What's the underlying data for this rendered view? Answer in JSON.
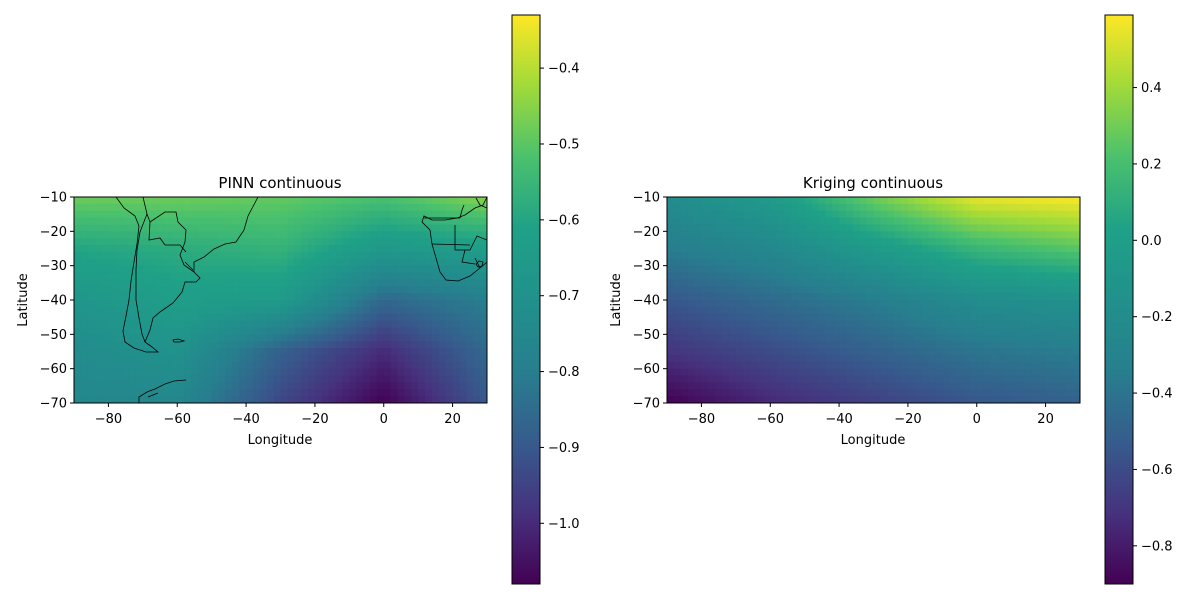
{
  "colormap": "viridis",
  "chart_data": [
    {
      "type": "heatmap",
      "title": "PINN continuous",
      "xlabel": "Longitude",
      "ylabel": "Latitude",
      "xlim": [
        -90,
        30
      ],
      "ylim": [
        -70,
        -10
      ],
      "xticks": [
        -80,
        -60,
        -40,
        -20,
        0,
        20
      ],
      "yticks": [
        -10,
        -20,
        -30,
        -40,
        -50,
        -60,
        -70
      ],
      "grid": false,
      "colorbar": {
        "range": [
          -1.08,
          -0.33
        ],
        "ticks": [
          -0.4,
          -0.5,
          -0.6,
          -0.7,
          -0.8,
          -0.9,
          -1.0
        ],
        "tick_labels": [
          "−0.4",
          "−0.5",
          "−0.6",
          "−0.7",
          "−0.8",
          "−0.9",
          "−1.0"
        ]
      },
      "field_samples": {
        "lon": [
          -90,
          -60,
          -30,
          0,
          30
        ],
        "lat": [
          -10,
          -25,
          -40,
          -55,
          -70
        ],
        "values": [
          [
            -0.48,
            -0.48,
            -0.49,
            -0.52,
            -0.45
          ],
          [
            -0.6,
            -0.58,
            -0.56,
            -0.66,
            -0.63
          ],
          [
            -0.68,
            -0.63,
            -0.65,
            -0.86,
            -0.8
          ],
          [
            -0.73,
            -0.7,
            -0.88,
            -1.0,
            -0.86
          ],
          [
            -0.76,
            -0.76,
            -0.94,
            -1.08,
            -0.9
          ]
        ]
      }
    },
    {
      "type": "heatmap",
      "title": "Kriging continuous",
      "xlabel": "Longitude",
      "ylabel": "Latitude",
      "xlim": [
        -90,
        30
      ],
      "ylim": [
        -70,
        -10
      ],
      "xticks": [
        -80,
        -60,
        -40,
        -20,
        0,
        20
      ],
      "yticks": [
        -10,
        -20,
        -30,
        -40,
        -50,
        -60,
        -70
      ],
      "grid": false,
      "colorbar": {
        "range": [
          -0.9,
          0.59
        ],
        "ticks": [
          0.4,
          0.2,
          0.0,
          -0.2,
          -0.4,
          -0.6,
          -0.8
        ],
        "tick_labels": [
          "0.4",
          "0.2",
          "0.0",
          "−0.2",
          "−0.4",
          "−0.6",
          "−0.8"
        ]
      },
      "field_samples": {
        "lon": [
          -90,
          -60,
          -30,
          0,
          30
        ],
        "lat": [
          -10,
          -25,
          -40,
          -55,
          -70
        ],
        "values": [
          [
            -0.2,
            -0.05,
            0.3,
            0.55,
            0.59
          ],
          [
            -0.35,
            -0.25,
            -0.05,
            0.15,
            0.25
          ],
          [
            -0.55,
            -0.45,
            -0.35,
            -0.2,
            -0.15
          ],
          [
            -0.7,
            -0.6,
            -0.5,
            -0.4,
            -0.35
          ],
          [
            -0.9,
            -0.75,
            -0.65,
            -0.55,
            -0.5
          ]
        ]
      }
    }
  ]
}
